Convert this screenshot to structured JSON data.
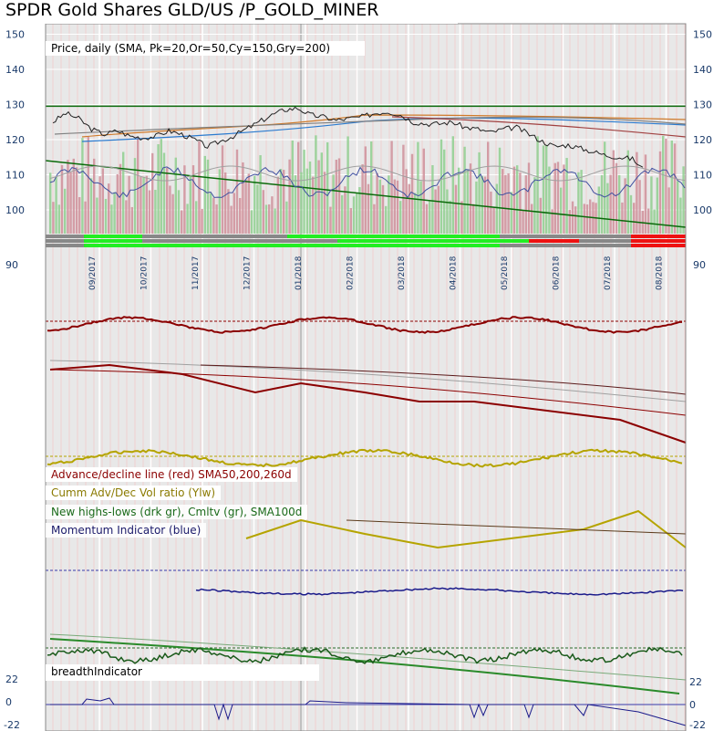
{
  "title": "SPDR Gold Shares GLD/US /P_GOLD_MINER",
  "price_legend": "Price, daily (SMA, Pk=20,Or=50,Cy=150,Gry=200)",
  "breadth_legend": {
    "ad_line": "Advance/decline line (red) SMA50,200,260d",
    "cumm_vol": "Cumm Adv/Dec Vol ratio (Ylw)",
    "new_highs_lows": "New highs-lows (drk gr), Cmltv (gr), SMA100d",
    "momentum": "Momentum Indicator (blue)"
  },
  "breadth_indicator_label": "breadthIndicator",
  "colors": {
    "ad_line": "#8b0000",
    "cumm_vol": "#b5a400",
    "new_highs_lows": "#1a5a1a",
    "momentum": "#1a1a8a",
    "trend_line": "#0a6a0a",
    "status_green": "#22ee22",
    "status_red": "#ee1111",
    "status_gray": "#888888"
  },
  "chart_data": {
    "type": "line",
    "price_axis": {
      "ticks": [
        150,
        140,
        130,
        120,
        110,
        100,
        90
      ],
      "ylim": [
        90,
        150
      ],
      "horizontal_line": 129.5
    },
    "breadth_axis": {
      "ticks": [
        22,
        0,
        -22
      ]
    },
    "months": [
      "09/2017",
      "10/2017",
      "11/2017",
      "12/2017",
      "01/2018",
      "02/2018",
      "03/2018",
      "04/2018",
      "05/2018",
      "06/2018",
      "07/2018",
      "08/2018"
    ],
    "price_series": {
      "name": "Price",
      "x_month_index": [
        0,
        0.25,
        0.5,
        0.75,
        1,
        1.25,
        1.5,
        1.75,
        2,
        2.25,
        2.5,
        2.75,
        3,
        3.25,
        3.5,
        3.75,
        4,
        4.25,
        4.5,
        4.75,
        5,
        5.25,
        5.5,
        5.75,
        6,
        6.25,
        6.5,
        6.75,
        7,
        7.25,
        7.5,
        7.75,
        8,
        8.25,
        8.5,
        8.75,
        9,
        9.25,
        9.5,
        9.75,
        10,
        10.25,
        10.5,
        10.75,
        11,
        11.25,
        11.5
      ],
      "values": [
        125,
        127.5,
        126,
        123,
        121.5,
        122.5,
        121,
        120.5,
        121,
        122.5,
        121.5,
        120,
        118,
        119.5,
        121,
        123,
        125,
        127,
        128.5,
        129,
        127,
        126.5,
        125.5,
        126,
        126.5,
        127.5,
        128,
        127,
        125,
        124.5,
        124.5,
        125,
        123.5,
        123,
        122,
        123,
        123.5,
        121.5,
        119.5,
        118,
        118.5,
        117.5,
        116.5,
        115.5,
        115,
        114.5,
        111
      ]
    }
  }
}
